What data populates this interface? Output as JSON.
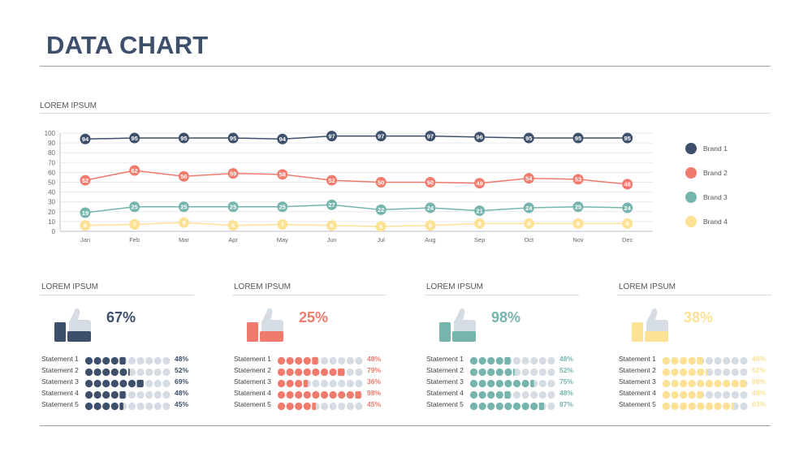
{
  "title": "DATA CHART",
  "line_section": {
    "label": "LOREM IPSUM"
  },
  "colors": {
    "brand1": "#3d4f6b",
    "brand2": "#f07a6c",
    "brand3": "#76b5ad",
    "brand4": "#fde194",
    "inactive": "#d6dce4"
  },
  "chart_data": [
    {
      "type": "line",
      "title": "",
      "xlabel": "",
      "ylabel": "",
      "x": [
        "Jan",
        "Feb",
        "Mar",
        "Apr",
        "May",
        "Jun",
        "Jul",
        "Aug",
        "Sep",
        "Oct",
        "Nov",
        "Dec"
      ],
      "ylim": [
        0,
        100
      ],
      "yticks": [
        0,
        10,
        20,
        30,
        40,
        50,
        60,
        70,
        80,
        90,
        100
      ],
      "grid": true,
      "legend": "right",
      "series": [
        {
          "name": "Brand 1",
          "color": "#3d4f6b",
          "values": [
            94,
            95,
            95,
            95,
            94,
            97,
            97,
            97,
            96,
            95,
            95,
            95
          ]
        },
        {
          "name": "Brand 2",
          "color": "#f07a6c",
          "values": [
            52,
            62,
            56,
            59,
            58,
            52,
            50,
            50,
            49,
            54,
            53,
            48
          ]
        },
        {
          "name": "Brand 3",
          "color": "#76b5ad",
          "values": [
            19,
            25,
            25,
            25,
            25,
            27,
            22,
            24,
            21,
            24,
            25,
            24
          ]
        },
        {
          "name": "Brand 4",
          "color": "#fde194",
          "values": [
            6,
            7,
            9,
            6,
            7,
            6,
            5,
            6,
            8,
            8,
            8,
            8
          ]
        }
      ]
    },
    {
      "type": "bar",
      "title": "LOREM IPSUM",
      "headline": "67%",
      "color": "#3d4f6b",
      "categories": [
        "Statement 1",
        "Statement 2",
        "Statement 3",
        "Statement 4",
        "Statement 5"
      ],
      "values": [
        48,
        52,
        69,
        48,
        45
      ],
      "value_labels": [
        "48%",
        "52%",
        "69%",
        "48%",
        "45%"
      ]
    },
    {
      "type": "bar",
      "title": "LOREM IPSUM",
      "headline": "25%",
      "color": "#f07a6c",
      "categories": [
        "Statement 1",
        "Statement 2",
        "Statement 3",
        "Statement 4",
        "Statement 5"
      ],
      "values": [
        48,
        79,
        36,
        98,
        45
      ],
      "value_labels": [
        "48%",
        "79%",
        "36%",
        "98%",
        "45%"
      ]
    },
    {
      "type": "bar",
      "title": "LOREM IPSUM",
      "headline": "98%",
      "color": "#76b5ad",
      "categories": [
        "Statement 1",
        "Statement 2",
        "Statement 3",
        "Statement 4",
        "Statement 5"
      ],
      "values": [
        48,
        52,
        75,
        48,
        87
      ],
      "value_labels": [
        "48%",
        "52%",
        "75%",
        "48%",
        "87%"
      ]
    },
    {
      "type": "bar",
      "title": "LOREM IPSUM",
      "headline": "38%",
      "color": "#fde194",
      "categories": [
        "Statement 1",
        "Statement 2",
        "Statement 3",
        "Statement 4",
        "Statement 5"
      ],
      "values": [
        48,
        52,
        98,
        48,
        83
      ],
      "value_labels": [
        "48%",
        "52%",
        "98%",
        "48%",
        "83%"
      ]
    }
  ]
}
